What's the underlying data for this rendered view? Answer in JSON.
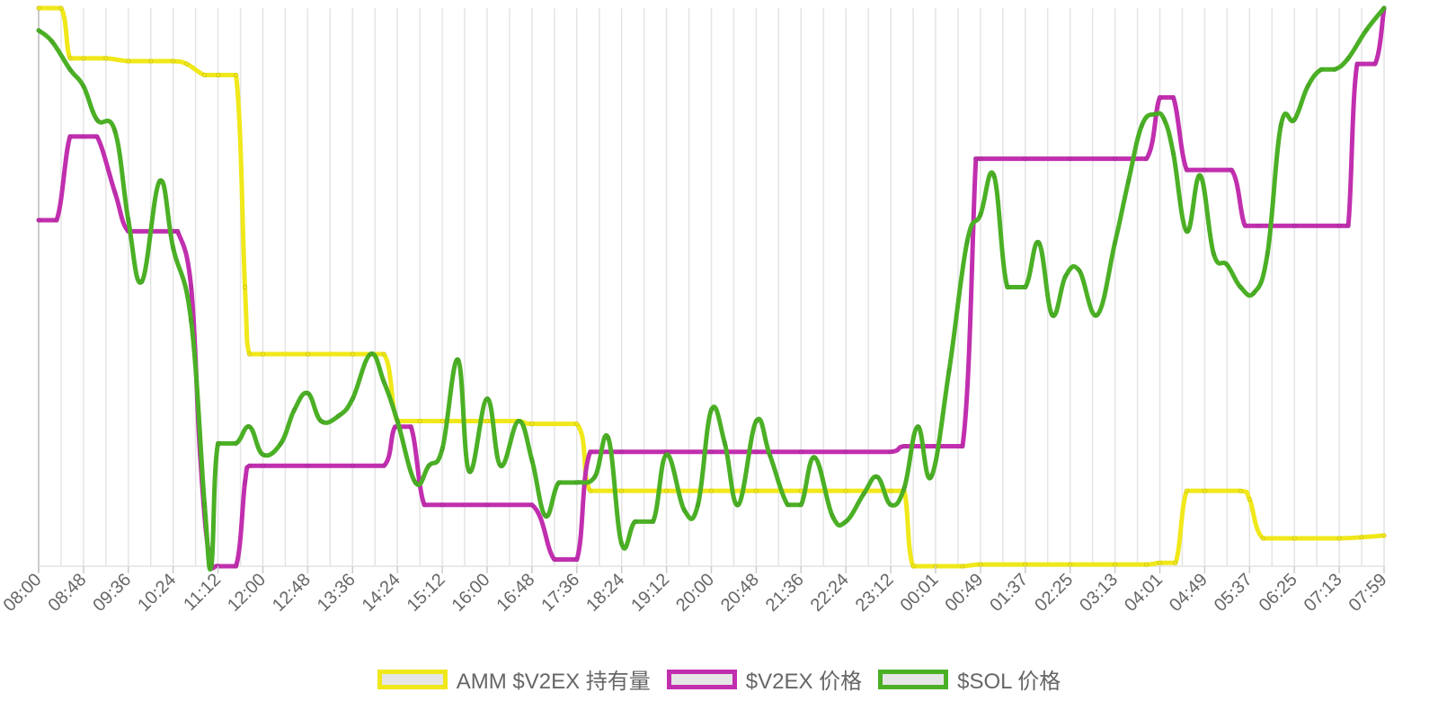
{
  "chart_data": {
    "type": "line",
    "title": "",
    "xlabel": "",
    "ylabel": "",
    "grid": true,
    "legend_position": "bottom",
    "categories": [
      "08:00",
      "08:48",
      "09:36",
      "10:24",
      "11:12",
      "12:00",
      "12:48",
      "13:36",
      "14:24",
      "15:12",
      "16:00",
      "16:48",
      "17:36",
      "18:24",
      "19:12",
      "20:00",
      "20:48",
      "21:36",
      "22:24",
      "23:12",
      "00:01",
      "00:49",
      "01:37",
      "02:25",
      "03:13",
      "04:01",
      "04:49",
      "05:37",
      "06:25",
      "07:13",
      "07:59"
    ],
    "normalized_note": "",
    "series": [
      {
        "name": "AMM $V2EX 持有量",
        "color": "#f0e81a",
        "points": [
          [
            0,
            100
          ],
          [
            0.5,
            100
          ],
          [
            0.7,
            91
          ],
          [
            1,
            91
          ],
          [
            1.5,
            91
          ],
          [
            2,
            90.5
          ],
          [
            2.5,
            90.5
          ],
          [
            3,
            90.5
          ],
          [
            3.3,
            90
          ],
          [
            3.7,
            88
          ],
          [
            4,
            88
          ],
          [
            4.4,
            88
          ],
          [
            4.6,
            50
          ],
          [
            4.7,
            38
          ],
          [
            5,
            38
          ],
          [
            6,
            38
          ],
          [
            7,
            38
          ],
          [
            7.7,
            38
          ],
          [
            8,
            26
          ],
          [
            8.5,
            26
          ],
          [
            9,
            26
          ],
          [
            10,
            26
          ],
          [
            10.7,
            26
          ],
          [
            11,
            25.5
          ],
          [
            12,
            25.5
          ],
          [
            12.3,
            13.5
          ],
          [
            13,
            13.5
          ],
          [
            14,
            13.5
          ],
          [
            15,
            13.5
          ],
          [
            16,
            13.5
          ],
          [
            17,
            13.5
          ],
          [
            18,
            13.5
          ],
          [
            19,
            13.5
          ],
          [
            19.3,
            13.5
          ],
          [
            19.5,
            0
          ],
          [
            20,
            0
          ],
          [
            20.6,
            0
          ],
          [
            21,
            0.3
          ],
          [
            22,
            0.3
          ],
          [
            23,
            0.3
          ],
          [
            24,
            0.3
          ],
          [
            24.7,
            0.3
          ],
          [
            25,
            0.6
          ],
          [
            25.35,
            0.6
          ],
          [
            25.6,
            13.5
          ],
          [
            26,
            13.5
          ],
          [
            26.8,
            13.5
          ],
          [
            27,
            12
          ],
          [
            27.3,
            5
          ],
          [
            28,
            5
          ],
          [
            29,
            5
          ],
          [
            29.5,
            5.2
          ],
          [
            30,
            5.5
          ]
        ]
      },
      {
        "name": "$V2EX 价格",
        "color": "#c12faf",
        "points": [
          [
            0,
            62
          ],
          [
            0.4,
            62
          ],
          [
            0.7,
            77
          ],
          [
            1,
            77
          ],
          [
            1.3,
            77
          ],
          [
            1.7,
            67
          ],
          [
            2,
            60
          ],
          [
            2.5,
            60
          ],
          [
            3,
            60
          ],
          [
            3.1,
            60
          ],
          [
            3.4,
            50
          ],
          [
            3.6,
            20
          ],
          [
            3.8,
            2
          ],
          [
            4,
            0
          ],
          [
            4.4,
            0
          ],
          [
            4.6,
            15
          ],
          [
            4.7,
            18
          ],
          [
            5,
            18
          ],
          [
            6,
            18
          ],
          [
            7,
            18
          ],
          [
            7.7,
            18
          ],
          [
            7.95,
            25
          ],
          [
            8.3,
            25
          ],
          [
            8.6,
            11
          ],
          [
            9,
            11
          ],
          [
            10,
            11
          ],
          [
            11,
            11
          ],
          [
            11.5,
            1.2
          ],
          [
            12,
            1.2
          ],
          [
            12.3,
            20.5
          ],
          [
            13,
            20.5
          ],
          [
            14,
            20.5
          ],
          [
            15,
            20.5
          ],
          [
            16,
            20.5
          ],
          [
            17,
            20.5
          ],
          [
            18,
            20.5
          ],
          [
            19,
            20.5
          ],
          [
            19.3,
            21.5
          ],
          [
            20,
            21.5
          ],
          [
            20.6,
            21.5
          ],
          [
            20.9,
            73
          ],
          [
            21,
            73
          ],
          [
            22,
            73
          ],
          [
            23,
            73
          ],
          [
            24,
            73
          ],
          [
            24.7,
            73
          ],
          [
            25,
            84
          ],
          [
            25.3,
            84
          ],
          [
            25.6,
            71
          ],
          [
            26,
            71
          ],
          [
            26.6,
            71
          ],
          [
            26.9,
            61
          ],
          [
            27.2,
            61
          ],
          [
            28,
            61
          ],
          [
            29,
            61
          ],
          [
            29.2,
            61
          ],
          [
            29.4,
            90
          ],
          [
            29.8,
            90
          ],
          [
            30,
            100
          ]
        ]
      },
      {
        "name": "$SOL 价格",
        "color": "#4bb025",
        "points": [
          [
            0,
            96
          ],
          [
            0.3,
            94
          ],
          [
            0.7,
            89
          ],
          [
            1,
            86
          ],
          [
            1.3,
            80
          ],
          [
            1.7,
            78
          ],
          [
            2,
            62
          ],
          [
            2.3,
            51
          ],
          [
            2.7,
            69
          ],
          [
            3,
            57
          ],
          [
            3.4,
            44
          ],
          [
            3.7,
            11
          ],
          [
            3.85,
            0
          ],
          [
            4,
            22
          ],
          [
            4.4,
            22
          ],
          [
            4.7,
            25
          ],
          [
            5,
            20
          ],
          [
            5.4,
            22
          ],
          [
            5.7,
            28
          ],
          [
            6,
            31
          ],
          [
            6.3,
            26
          ],
          [
            6.7,
            27
          ],
          [
            7,
            30
          ],
          [
            7.4,
            38
          ],
          [
            7.7,
            33
          ],
          [
            8,
            26
          ],
          [
            8.4,
            15
          ],
          [
            8.7,
            18
          ],
          [
            9,
            21
          ],
          [
            9.35,
            37
          ],
          [
            9.6,
            17
          ],
          [
            10,
            30
          ],
          [
            10.3,
            18
          ],
          [
            10.7,
            26
          ],
          [
            11,
            19
          ],
          [
            11.3,
            9
          ],
          [
            11.6,
            15
          ],
          [
            12,
            15
          ],
          [
            12.4,
            16
          ],
          [
            12.7,
            23
          ],
          [
            13,
            4
          ],
          [
            13.3,
            8
          ],
          [
            13.7,
            8
          ],
          [
            14,
            20
          ],
          [
            14.4,
            10
          ],
          [
            14.7,
            11
          ],
          [
            15,
            28
          ],
          [
            15.3,
            22
          ],
          [
            15.6,
            11
          ],
          [
            16,
            26
          ],
          [
            16.3,
            20
          ],
          [
            16.7,
            11
          ],
          [
            17,
            11
          ],
          [
            17.3,
            19.5
          ],
          [
            17.7,
            9
          ],
          [
            18,
            8
          ],
          [
            18.4,
            13
          ],
          [
            18.7,
            16
          ],
          [
            19,
            11
          ],
          [
            19.3,
            14
          ],
          [
            19.6,
            25
          ],
          [
            19.9,
            16
          ],
          [
            20.3,
            35
          ],
          [
            20.7,
            58
          ],
          [
            21,
            63
          ],
          [
            21.3,
            70
          ],
          [
            21.6,
            50
          ],
          [
            22,
            50
          ],
          [
            22.3,
            58
          ],
          [
            22.6,
            45
          ],
          [
            22.9,
            52
          ],
          [
            23.2,
            53
          ],
          [
            23.6,
            45
          ],
          [
            24,
            58
          ],
          [
            24.3,
            69
          ],
          [
            24.6,
            79
          ],
          [
            24.9,
            81
          ],
          [
            25.1,
            80
          ],
          [
            25.3,
            74
          ],
          [
            25.6,
            60
          ],
          [
            25.9,
            70
          ],
          [
            26.2,
            56
          ],
          [
            26.5,
            54
          ],
          [
            26.8,
            50
          ],
          [
            27.1,
            49
          ],
          [
            27.4,
            56
          ],
          [
            27.7,
            79
          ],
          [
            28,
            80
          ],
          [
            28.3,
            86
          ],
          [
            28.6,
            89
          ],
          [
            28.9,
            89
          ],
          [
            29.2,
            91
          ],
          [
            29.6,
            96
          ],
          [
            30,
            100
          ]
        ]
      }
    ]
  },
  "legend": {
    "items": [
      "AMM $V2EX 持有量",
      "$V2EX 价格",
      "$SOL 价格"
    ]
  }
}
